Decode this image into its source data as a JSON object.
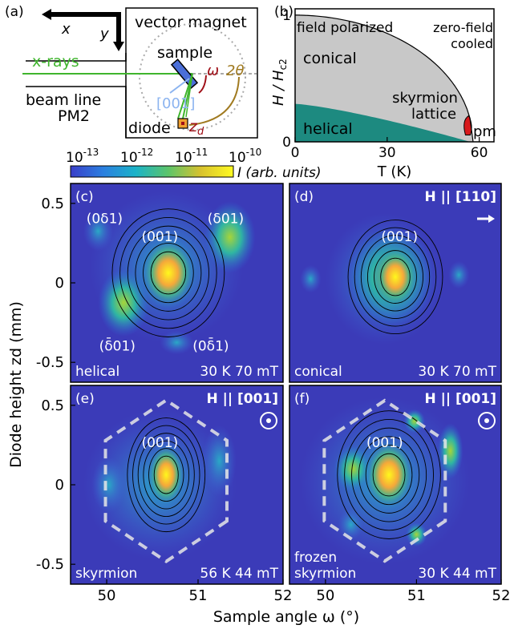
{
  "panel_a": {
    "letter": "(a)",
    "axis_x": "x",
    "axis_y": "y",
    "magnet": "vector magnet",
    "sample": "sample",
    "xrays": "x-rays",
    "omega": "ω",
    "two_theta": "2θ",
    "direction": "[001]",
    "beamline": "beam line",
    "station": "PM2",
    "diode": "diode",
    "zd": "z",
    "zd_sub": "d"
  },
  "panel_b": {
    "letter": "(b)",
    "label_fp": "field polarized",
    "label_zfc_1": "zero-field",
    "label_zfc_2": "cooled",
    "label_conical": "conical",
    "label_helical": "helical",
    "label_skx_1": "skyrmion",
    "label_skx_2": "lattice",
    "label_pm": "pm",
    "ylabel": "H / H",
    "ylabel_sub": "c2",
    "xlabel": "T (K)",
    "yticks": [
      "0",
      "1"
    ],
    "xticks": [
      "0",
      "30",
      "60"
    ],
    "colors": {
      "conical": "#c8c8c8",
      "helical": "#1d8a80",
      "skyrmion": "#d7191c"
    }
  },
  "colorbar": {
    "ticks": [
      "10",
      "10",
      "10",
      "10"
    ],
    "exponents": [
      "-13",
      "-12",
      "-11",
      "-10"
    ],
    "label": "I (arb. units)"
  },
  "maps": {
    "ylabel": "Diode height zd (mm)",
    "xlabel": "Sample angle ω (°)",
    "yticks": [
      "0.5",
      "0",
      "-0.5"
    ],
    "xticks": [
      "50",
      "51",
      "52"
    ],
    "panels": [
      {
        "letter": "(c)",
        "mode": "helical",
        "conditions": "30 K 70 mT",
        "field": "",
        "peaks": [
          "(0δ1)",
          "(δ01)",
          "(001)",
          "(δ̄01)",
          "(0δ̄1)"
        ]
      },
      {
        "letter": "(d)",
        "mode": "conical",
        "conditions": "30 K 70 mT",
        "field": "H || [110]",
        "peaks": [
          "(001)"
        ]
      },
      {
        "letter": "(e)",
        "mode": "skyrmion",
        "conditions": "56 K 44 mT",
        "field": "H || [001]",
        "peaks": [
          "(001)"
        ]
      },
      {
        "letter": "(f)",
        "mode_1": "frozen",
        "mode_2": "skyrmion",
        "conditions": "30 K 44 mT",
        "field": "H || [001]",
        "peaks": [
          "(001)"
        ]
      }
    ]
  }
}
